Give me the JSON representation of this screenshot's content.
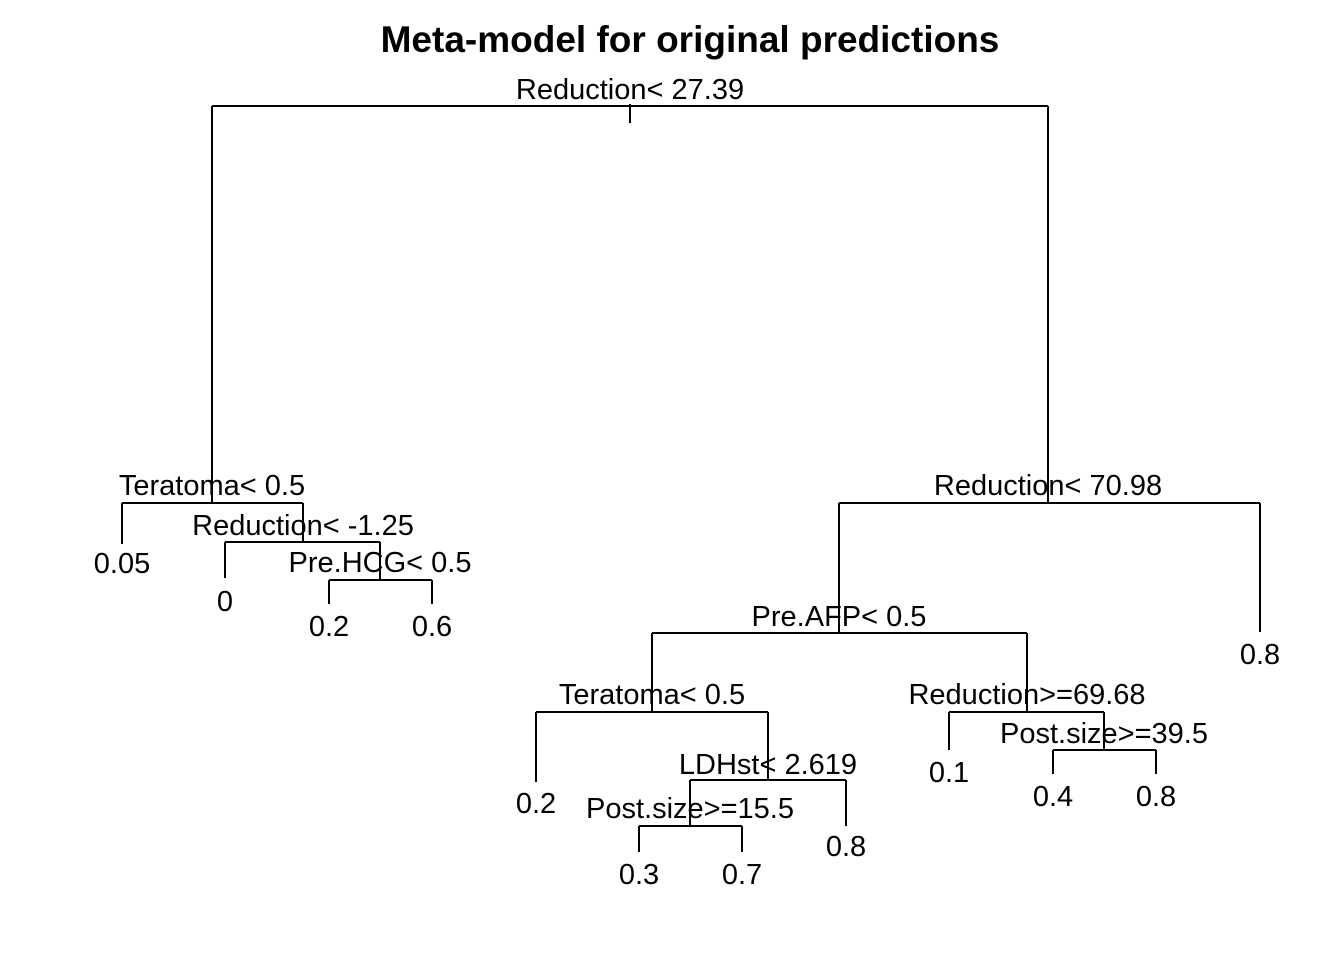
{
  "title": "Meta-model for original predictions",
  "tree": {
    "split": "Reduction< 27.39",
    "left": {
      "split": "Teratoma< 0.5",
      "left": {
        "value": "0.05"
      },
      "right": {
        "split": "Reduction< -1.25",
        "left": {
          "value": "0"
        },
        "right": {
          "split": "Pre.HCG< 0.5",
          "left": {
            "value": "0.2"
          },
          "right": {
            "value": "0.6"
          }
        }
      }
    },
    "right": {
      "split": "Reduction< 70.98",
      "left": {
        "split": "Pre.AFP< 0.5",
        "left": {
          "split": "Teratoma< 0.5",
          "left": {
            "value": "0.2"
          },
          "right": {
            "split": "LDHst< 2.619",
            "left": {
              "split": "Post.size>=15.5",
              "left": {
                "value": "0.3"
              },
              "right": {
                "value": "0.7"
              }
            },
            "right": {
              "value": "0.8"
            }
          }
        },
        "right": {
          "split": "Reduction>=69.68",
          "left": {
            "value": "0.1"
          },
          "right": {
            "split": "Post.size>=39.5",
            "left": {
              "value": "0.4"
            },
            "right": {
              "value": "0.8"
            }
          }
        }
      },
      "right": {
        "value": "0.8"
      }
    }
  }
}
